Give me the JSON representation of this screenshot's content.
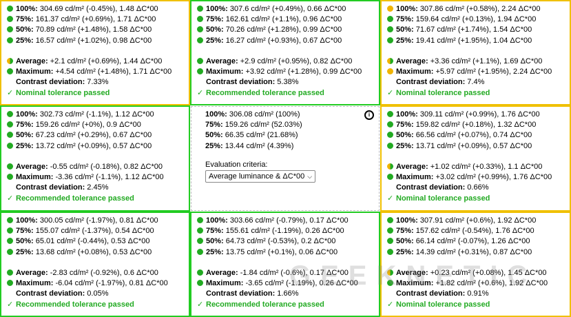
{
  "cells": [
    {
      "rows": [
        {
          "label": "100%:",
          "value": " 304.69 cd/m² (-0.45%), 1.48 ΔC*00",
          "dot": "g"
        },
        {
          "label": "75%:",
          "value": " 161.37 cd/m² (+0.69%), 1.71 ΔC*00",
          "dot": "g"
        },
        {
          "label": "50%:",
          "value": " 70.89 cd/m² (+1.48%), 1.58 ΔC*00",
          "dot": "g"
        },
        {
          "label": "25%:",
          "value": " 16.57 cd/m² (+1.02%), 0.98 ΔC*00",
          "dot": "g"
        }
      ],
      "average": {
        "label": "Average:",
        "value": " +2.1 cd/m² (+0.69%), 1.44 ΔC*00",
        "dot": "half"
      },
      "maximum": {
        "label": "Maximum:",
        "value": " +4.54 cd/m² (+1.48%), 1.71 ΔC*00",
        "dot": "g"
      },
      "contrast": {
        "label": "Contrast deviation:",
        "value": " 7.33%"
      },
      "status": "Nominal tolerance passed"
    },
    {
      "rows": [
        {
          "label": "100%:",
          "value": " 307.6 cd/m² (+0.49%), 0.66 ΔC*00",
          "dot": "g"
        },
        {
          "label": "75%:",
          "value": " 162.61 cd/m² (+1.1%), 0.96 ΔC*00",
          "dot": "g"
        },
        {
          "label": "50%:",
          "value": " 70.26 cd/m² (+1.28%), 0.99 ΔC*00",
          "dot": "g"
        },
        {
          "label": "25%:",
          "value": " 16.27 cd/m² (+0.93%), 0.67 ΔC*00",
          "dot": "g"
        }
      ],
      "average": {
        "label": "Average:",
        "value": " +2.9 cd/m² (+0.95%), 0.82 ΔC*00",
        "dot": "g"
      },
      "maximum": {
        "label": "Maximum:",
        "value": " +3.92 cd/m² (+1.28%), 0.99 ΔC*00",
        "dot": "g"
      },
      "contrast": {
        "label": "Contrast deviation:",
        "value": " 5.38%"
      },
      "status": "Recommended tolerance passed"
    },
    {
      "rows": [
        {
          "label": "100%:",
          "value": " 307.86 cd/m² (+0.58%), 2.24 ΔC*00",
          "dot": "y"
        },
        {
          "label": "75%:",
          "value": " 159.64 cd/m² (+0.13%), 1.94 ΔC*00",
          "dot": "g"
        },
        {
          "label": "50%:",
          "value": " 71.67 cd/m² (+1.74%), 1.54 ΔC*00",
          "dot": "g"
        },
        {
          "label": "25%:",
          "value": " 19.41 cd/m² (+1.95%), 1.04 ΔC*00",
          "dot": "g"
        }
      ],
      "average": {
        "label": "Average:",
        "value": " +3.36 cd/m² (+1.1%), 1.69 ΔC*00",
        "dot": "half"
      },
      "maximum": {
        "label": "Maximum:",
        "value": " +5.97 cd/m² (+1.95%), 2.24 ΔC*00",
        "dot": "y"
      },
      "contrast": {
        "label": "Contrast deviation:",
        "value": " 7.4%"
      },
      "status": "Nominal tolerance passed"
    },
    {
      "rows": [
        {
          "label": "100%:",
          "value": " 302.73 cd/m² (-1.1%), 1.12 ΔC*00",
          "dot": "g"
        },
        {
          "label": "75%:",
          "value": " 159.26 cd/m² (+0%), 0.9 ΔC*00",
          "dot": "g"
        },
        {
          "label": "50%:",
          "value": " 67.23 cd/m² (+0.29%), 0.67 ΔC*00",
          "dot": "g"
        },
        {
          "label": "25%:",
          "value": " 13.72 cd/m² (+0.09%), 0.57 ΔC*00",
          "dot": "g"
        }
      ],
      "average": {
        "label": "Average:",
        "value": " -0.55 cd/m² (-0.18%), 0.82 ΔC*00",
        "dot": "g"
      },
      "maximum": {
        "label": "Maximum:",
        "value": " -3.36 cd/m² (-1.1%), 1.12 ΔC*00",
        "dot": "g"
      },
      "contrast": {
        "label": "Contrast deviation:",
        "value": " 2.45%"
      },
      "status": "Recommended tolerance passed"
    },
    {
      "rows": [
        {
          "label": "100%:",
          "value": " 309.11 cd/m² (+0.99%), 1.76 ΔC*00",
          "dot": "g"
        },
        {
          "label": "75%:",
          "value": " 159.82 cd/m² (+0.18%), 1.32 ΔC*00",
          "dot": "g"
        },
        {
          "label": "50%:",
          "value": " 66.56 cd/m² (+0.07%), 0.74 ΔC*00",
          "dot": "g"
        },
        {
          "label": "25%:",
          "value": " 13.71 cd/m² (+0.09%), 0.57 ΔC*00",
          "dot": "g"
        }
      ],
      "average": {
        "label": "Average:",
        "value": " +1.02 cd/m² (+0.33%), 1.1 ΔC*00",
        "dot": "half"
      },
      "maximum": {
        "label": "Maximum:",
        "value": " +3.02 cd/m² (+0.99%), 1.76 ΔC*00",
        "dot": "g"
      },
      "contrast": {
        "label": "Contrast deviation:",
        "value": " 0.66%"
      },
      "status": "Nominal tolerance passed"
    },
    {
      "rows": [
        {
          "label": "100%:",
          "value": " 300.05 cd/m² (-1.97%), 0.81 ΔC*00",
          "dot": "g"
        },
        {
          "label": "75%:",
          "value": " 155.07 cd/m² (-1.37%), 0.54 ΔC*00",
          "dot": "g"
        },
        {
          "label": "50%:",
          "value": " 65.01 cd/m² (-0.44%), 0.53 ΔC*00",
          "dot": "g"
        },
        {
          "label": "25%:",
          "value": " 13.68 cd/m² (+0.08%), 0.53 ΔC*00",
          "dot": "g"
        }
      ],
      "average": {
        "label": "Average:",
        "value": " -2.83 cd/m² (-0.92%), 0.6 ΔC*00",
        "dot": "g"
      },
      "maximum": {
        "label": "Maximum:",
        "value": " -6.04 cd/m² (-1.97%), 0.81 ΔC*00",
        "dot": "g"
      },
      "contrast": {
        "label": "Contrast deviation:",
        "value": " 0.05%"
      },
      "status": "Recommended tolerance passed"
    },
    {
      "rows": [
        {
          "label": "100%:",
          "value": " 303.66 cd/m² (-0.79%), 0.17 ΔC*00",
          "dot": "g"
        },
        {
          "label": "75%:",
          "value": " 155.61 cd/m² (-1.19%), 0.26 ΔC*00",
          "dot": "g"
        },
        {
          "label": "50%:",
          "value": " 64.73 cd/m² (-0.53%), 0.2 ΔC*00",
          "dot": "g"
        },
        {
          "label": "25%:",
          "value": " 13.75 cd/m² (+0.1%), 0.06 ΔC*00",
          "dot": "g"
        }
      ],
      "average": {
        "label": "Average:",
        "value": " -1.84 cd/m² (-0.6%), 0.17 ΔC*00",
        "dot": "g"
      },
      "maximum": {
        "label": "Maximum:",
        "value": " -3.65 cd/m² (-1.19%), 0.26 ΔC*00",
        "dot": "g"
      },
      "contrast": {
        "label": "Contrast deviation:",
        "value": " 1.66%"
      },
      "status": "Recommended tolerance passed"
    },
    {
      "rows": [
        {
          "label": "100%:",
          "value": " 307.91 cd/m² (+0.6%), 1.92 ΔC*00",
          "dot": "g"
        },
        {
          "label": "75%:",
          "value": " 157.62 cd/m² (-0.54%), 1.76 ΔC*00",
          "dot": "g"
        },
        {
          "label": "50%:",
          "value": " 66.14 cd/m² (-0.07%), 1.26 ΔC*00",
          "dot": "g"
        },
        {
          "label": "25%:",
          "value": " 14.39 cd/m² (+0.31%), 0.87 ΔC*00",
          "dot": "g"
        }
      ],
      "average": {
        "label": "Average:",
        "value": " +0.23 cd/m² (+0.08%), 1.45 ΔC*00",
        "dot": "half"
      },
      "maximum": {
        "label": "Maximum:",
        "value": " +1.82 cd/m² (+0.6%), 1.92 ΔC*00",
        "dot": "g"
      },
      "contrast": {
        "label": "Contrast deviation:",
        "value": " 0.91%"
      },
      "status": "Nominal tolerance passed"
    }
  ],
  "reference": {
    "rows": [
      {
        "label": "100%:",
        "value": " 306.08 cd/m² (100%)"
      },
      {
        "label": "75%:",
        "value": " 159.26 cd/m² (52.03%)"
      },
      {
        "label": "50%:",
        "value": " 66.35 cd/m² (21.68%)"
      },
      {
        "label": "25%:",
        "value": " 13.44 cd/m² (4.39%)"
      }
    ],
    "criteria_label": "Evaluation criteria:",
    "criteria_value": "Average luminance & ΔC*00",
    "info_icon": "info-icon"
  },
  "status_symbol": "✓",
  "watermark": "GEEKNETIC",
  "colors": {
    "green": "#22cc22",
    "yellow": "#f0c000",
    "pass_text": "#22aa22"
  }
}
